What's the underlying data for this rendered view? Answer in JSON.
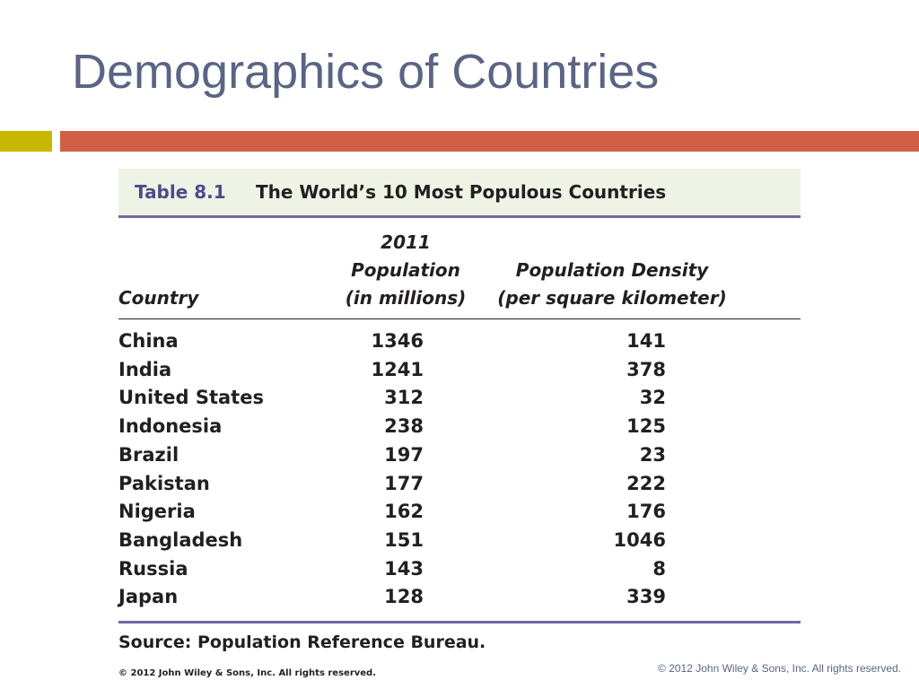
{
  "slide": {
    "title": "Demographics of Countries",
    "footer": "© 2012 John Wiley & Sons, Inc. All rights reserved."
  },
  "accent_colors": {
    "title": "#5a6584",
    "yellow_bar": "#c9b600",
    "orange_bar": "#d05f46",
    "table_rule": "#6f6aa6"
  },
  "table": {
    "label": "Table 8.1",
    "caption": "The World’s 10 Most Populous Countries",
    "headers": {
      "country": "Country",
      "population_line1": "2011 Population",
      "population_line2": "(in millions)",
      "density_line1": "Population Density",
      "density_line2": "(per square kilometer)"
    },
    "rows": [
      {
        "country": "China",
        "population": "1346",
        "density": "141"
      },
      {
        "country": "India",
        "population": "1241",
        "density": "378"
      },
      {
        "country": "United States",
        "population": "312",
        "density": "32"
      },
      {
        "country": "Indonesia",
        "population": "238",
        "density": "125"
      },
      {
        "country": "Brazil",
        "population": "197",
        "density": "23"
      },
      {
        "country": "Pakistan",
        "population": "177",
        "density": "222"
      },
      {
        "country": "Nigeria",
        "population": "162",
        "density": "176"
      },
      {
        "country": "Bangladesh",
        "population": "151",
        "density": "1046"
      },
      {
        "country": "Russia",
        "population": "143",
        "density": "8"
      },
      {
        "country": "Japan",
        "population": "128",
        "density": "339"
      }
    ],
    "source": "Source: Population Reference Bureau.",
    "copyright": "© 2012 John Wiley & Sons, Inc. All rights reserved."
  }
}
